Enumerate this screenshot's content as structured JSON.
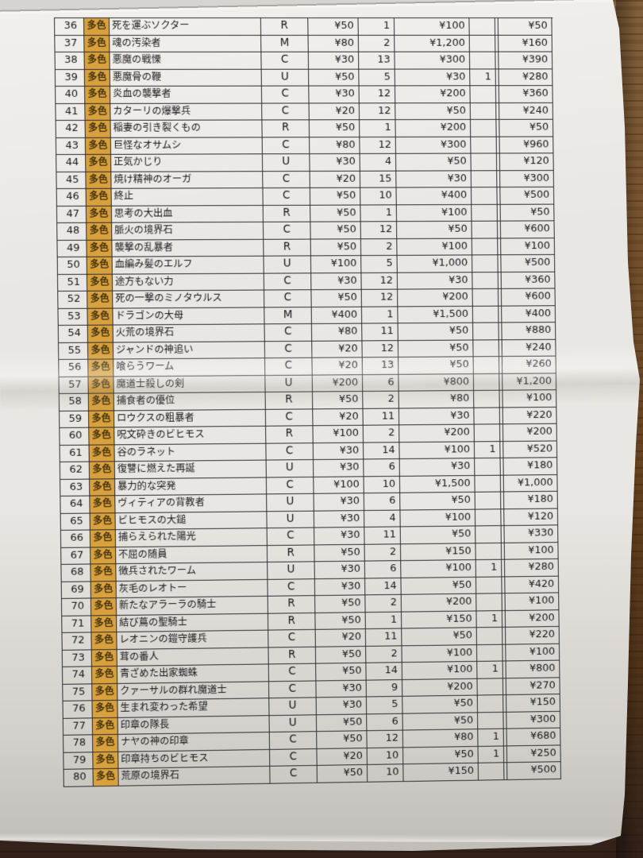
{
  "colors": {
    "tag_background": "#d8a13e",
    "table_line": "#2c2c30",
    "paper": "#e9e7e3",
    "wood": "#6b4826"
  },
  "table": {
    "rows": [
      {
        "no": "36",
        "tag": "多色",
        "name": "死を運ぶソクター",
        "rarity": "R",
        "price": "¥50",
        "qty": "1",
        "price2": "¥100",
        "extra": "",
        "total": "¥50"
      },
      {
        "no": "37",
        "tag": "多色",
        "name": "魂の汚染者",
        "rarity": "M",
        "price": "¥80",
        "qty": "2",
        "price2": "¥1,200",
        "extra": "",
        "total": "¥160"
      },
      {
        "no": "38",
        "tag": "多色",
        "name": "悪魔の戦慄",
        "rarity": "C",
        "price": "¥30",
        "qty": "13",
        "price2": "¥300",
        "extra": "",
        "total": "¥390"
      },
      {
        "no": "39",
        "tag": "多色",
        "name": "悪魔骨の鞭",
        "rarity": "U",
        "price": "¥50",
        "qty": "5",
        "price2": "¥30",
        "extra": "1",
        "total": "¥280"
      },
      {
        "no": "40",
        "tag": "多色",
        "name": "炎血の襲撃者",
        "rarity": "C",
        "price": "¥30",
        "qty": "12",
        "price2": "¥200",
        "extra": "",
        "total": "¥360"
      },
      {
        "no": "41",
        "tag": "多色",
        "name": "カターリの爆撃兵",
        "rarity": "C",
        "price": "¥20",
        "qty": "12",
        "price2": "¥50",
        "extra": "",
        "total": "¥240"
      },
      {
        "no": "42",
        "tag": "多色",
        "name": "稲妻の引き裂くもの",
        "rarity": "R",
        "price": "¥50",
        "qty": "1",
        "price2": "¥200",
        "extra": "",
        "total": "¥50"
      },
      {
        "no": "43",
        "tag": "多色",
        "name": "巨怪なオサムシ",
        "rarity": "C",
        "price": "¥80",
        "qty": "12",
        "price2": "¥300",
        "extra": "",
        "total": "¥960"
      },
      {
        "no": "44",
        "tag": "多色",
        "name": "正気かじり",
        "rarity": "U",
        "price": "¥30",
        "qty": "4",
        "price2": "¥50",
        "extra": "",
        "total": "¥120"
      },
      {
        "no": "45",
        "tag": "多色",
        "name": "焼け精神のオーガ",
        "rarity": "C",
        "price": "¥20",
        "qty": "15",
        "price2": "¥30",
        "extra": "",
        "total": "¥300"
      },
      {
        "no": "46",
        "tag": "多色",
        "name": "終止",
        "rarity": "C",
        "price": "¥50",
        "qty": "10",
        "price2": "¥400",
        "extra": "",
        "total": "¥500"
      },
      {
        "no": "47",
        "tag": "多色",
        "name": "思考の大出血",
        "rarity": "R",
        "price": "¥50",
        "qty": "1",
        "price2": "¥100",
        "extra": "",
        "total": "¥50"
      },
      {
        "no": "48",
        "tag": "多色",
        "name": "脈火の境界石",
        "rarity": "C",
        "price": "¥50",
        "qty": "12",
        "price2": "¥50",
        "extra": "",
        "total": "¥600"
      },
      {
        "no": "49",
        "tag": "多色",
        "name": "襲撃の乱暴者",
        "rarity": "R",
        "price": "¥50",
        "qty": "2",
        "price2": "¥100",
        "extra": "",
        "total": "¥100"
      },
      {
        "no": "50",
        "tag": "多色",
        "name": "血編み髪のエルフ",
        "rarity": "U",
        "price": "¥100",
        "qty": "5",
        "price2": "¥1,000",
        "extra": "",
        "total": "¥500"
      },
      {
        "no": "51",
        "tag": "多色",
        "name": "途方もない力",
        "rarity": "C",
        "price": "¥30",
        "qty": "12",
        "price2": "¥30",
        "extra": "",
        "total": "¥360"
      },
      {
        "no": "52",
        "tag": "多色",
        "name": "死の一撃のミノタウルス",
        "rarity": "C",
        "price": "¥50",
        "qty": "12",
        "price2": "¥200",
        "extra": "",
        "total": "¥600"
      },
      {
        "no": "53",
        "tag": "多色",
        "name": "ドラゴンの大母",
        "rarity": "M",
        "price": "¥400",
        "qty": "1",
        "price2": "¥1,500",
        "extra": "",
        "total": "¥400"
      },
      {
        "no": "54",
        "tag": "多色",
        "name": "火荒の境界石",
        "rarity": "C",
        "price": "¥80",
        "qty": "11",
        "price2": "¥50",
        "extra": "",
        "total": "¥880"
      },
      {
        "no": "55",
        "tag": "多色",
        "name": "ジャンドの神追い",
        "rarity": "C",
        "price": "¥20",
        "qty": "12",
        "price2": "¥50",
        "extra": "",
        "total": "¥240"
      },
      {
        "no": "56",
        "tag": "多色",
        "name": "喰らうワーム",
        "rarity": "C",
        "price": "¥20",
        "qty": "13",
        "price2": "¥50",
        "extra": "",
        "total": "¥260"
      },
      {
        "no": "57",
        "tag": "多色",
        "name": "魔道士殺しの剣",
        "rarity": "U",
        "price": "¥200",
        "qty": "6",
        "price2": "¥800",
        "extra": "",
        "total": "¥1,200"
      },
      {
        "no": "58",
        "tag": "多色",
        "name": "捕食者の優位",
        "rarity": "R",
        "price": "¥50",
        "qty": "2",
        "price2": "¥80",
        "extra": "",
        "total": "¥100"
      },
      {
        "no": "59",
        "tag": "多色",
        "name": "ロウクスの粗暴者",
        "rarity": "C",
        "price": "¥20",
        "qty": "11",
        "price2": "¥30",
        "extra": "",
        "total": "¥220"
      },
      {
        "no": "60",
        "tag": "多色",
        "name": "呪文砕きのビヒモス",
        "rarity": "R",
        "price": "¥100",
        "qty": "2",
        "price2": "¥200",
        "extra": "",
        "total": "¥200"
      },
      {
        "no": "61",
        "tag": "多色",
        "name": "谷のラネット",
        "rarity": "C",
        "price": "¥30",
        "qty": "14",
        "price2": "¥100",
        "extra": "1",
        "total": "¥520"
      },
      {
        "no": "62",
        "tag": "多色",
        "name": "復讐に燃えた再誕",
        "rarity": "U",
        "price": "¥30",
        "qty": "6",
        "price2": "¥30",
        "extra": "",
        "total": "¥180"
      },
      {
        "no": "63",
        "tag": "多色",
        "name": "暴力的な突発",
        "rarity": "C",
        "price": "¥100",
        "qty": "10",
        "price2": "¥1,500",
        "extra": "",
        "total": "¥1,000"
      },
      {
        "no": "64",
        "tag": "多色",
        "name": "ヴィティアの背教者",
        "rarity": "U",
        "price": "¥30",
        "qty": "6",
        "price2": "¥50",
        "extra": "",
        "total": "¥180"
      },
      {
        "no": "65",
        "tag": "多色",
        "name": "ビヒモスの大鎚",
        "rarity": "U",
        "price": "¥30",
        "qty": "4",
        "price2": "¥100",
        "extra": "",
        "total": "¥120"
      },
      {
        "no": "66",
        "tag": "多色",
        "name": "捕らえられた陽光",
        "rarity": "C",
        "price": "¥30",
        "qty": "11",
        "price2": "¥50",
        "extra": "",
        "total": "¥330"
      },
      {
        "no": "67",
        "tag": "多色",
        "name": "不屈の随員",
        "rarity": "R",
        "price": "¥50",
        "qty": "2",
        "price2": "¥150",
        "extra": "",
        "total": "¥100"
      },
      {
        "no": "68",
        "tag": "多色",
        "name": "徴兵されたワーム",
        "rarity": "U",
        "price": "¥30",
        "qty": "6",
        "price2": "¥100",
        "extra": "1",
        "total": "¥280"
      },
      {
        "no": "69",
        "tag": "多色",
        "name": "灰毛のレオトー",
        "rarity": "C",
        "price": "¥30",
        "qty": "14",
        "price2": "¥50",
        "extra": "",
        "total": "¥420"
      },
      {
        "no": "70",
        "tag": "多色",
        "name": "新たなアラーラの騎士",
        "rarity": "R",
        "price": "¥50",
        "qty": "2",
        "price2": "¥200",
        "extra": "",
        "total": "¥100"
      },
      {
        "no": "71",
        "tag": "多色",
        "name": "結び蔦の聖騎士",
        "rarity": "R",
        "price": "¥50",
        "qty": "1",
        "price2": "¥150",
        "extra": "1",
        "total": "¥200"
      },
      {
        "no": "72",
        "tag": "多色",
        "name": "レオニンの鎧守護兵",
        "rarity": "C",
        "price": "¥20",
        "qty": "11",
        "price2": "¥50",
        "extra": "",
        "total": "¥220"
      },
      {
        "no": "73",
        "tag": "多色",
        "name": "茸の番人",
        "rarity": "R",
        "price": "¥50",
        "qty": "2",
        "price2": "¥100",
        "extra": "",
        "total": "¥100"
      },
      {
        "no": "74",
        "tag": "多色",
        "name": "青ざめた出家蜘蛛",
        "rarity": "C",
        "price": "¥50",
        "qty": "14",
        "price2": "¥100",
        "extra": "1",
        "total": "¥800"
      },
      {
        "no": "75",
        "tag": "多色",
        "name": "クァーサルの群れ魔道士",
        "rarity": "C",
        "price": "¥30",
        "qty": "9",
        "price2": "¥200",
        "extra": "",
        "total": "¥270"
      },
      {
        "no": "76",
        "tag": "多色",
        "name": "生まれ変わった希望",
        "rarity": "U",
        "price": "¥30",
        "qty": "5",
        "price2": "¥50",
        "extra": "",
        "total": "¥150"
      },
      {
        "no": "77",
        "tag": "多色",
        "name": "印章の隊長",
        "rarity": "U",
        "price": "¥50",
        "qty": "6",
        "price2": "¥50",
        "extra": "",
        "total": "¥300"
      },
      {
        "no": "78",
        "tag": "多色",
        "name": "ナヤの神の印章",
        "rarity": "C",
        "price": "¥50",
        "qty": "12",
        "price2": "¥80",
        "extra": "1",
        "total": "¥680"
      },
      {
        "no": "79",
        "tag": "多色",
        "name": "印章持ちのビヒモス",
        "rarity": "C",
        "price": "¥20",
        "qty": "10",
        "price2": "¥50",
        "extra": "1",
        "total": "¥250"
      },
      {
        "no": "80",
        "tag": "多色",
        "name": "荒原の境界石",
        "rarity": "C",
        "price": "¥50",
        "qty": "10",
        "price2": "¥150",
        "extra": "",
        "total": "¥500"
      }
    ]
  }
}
